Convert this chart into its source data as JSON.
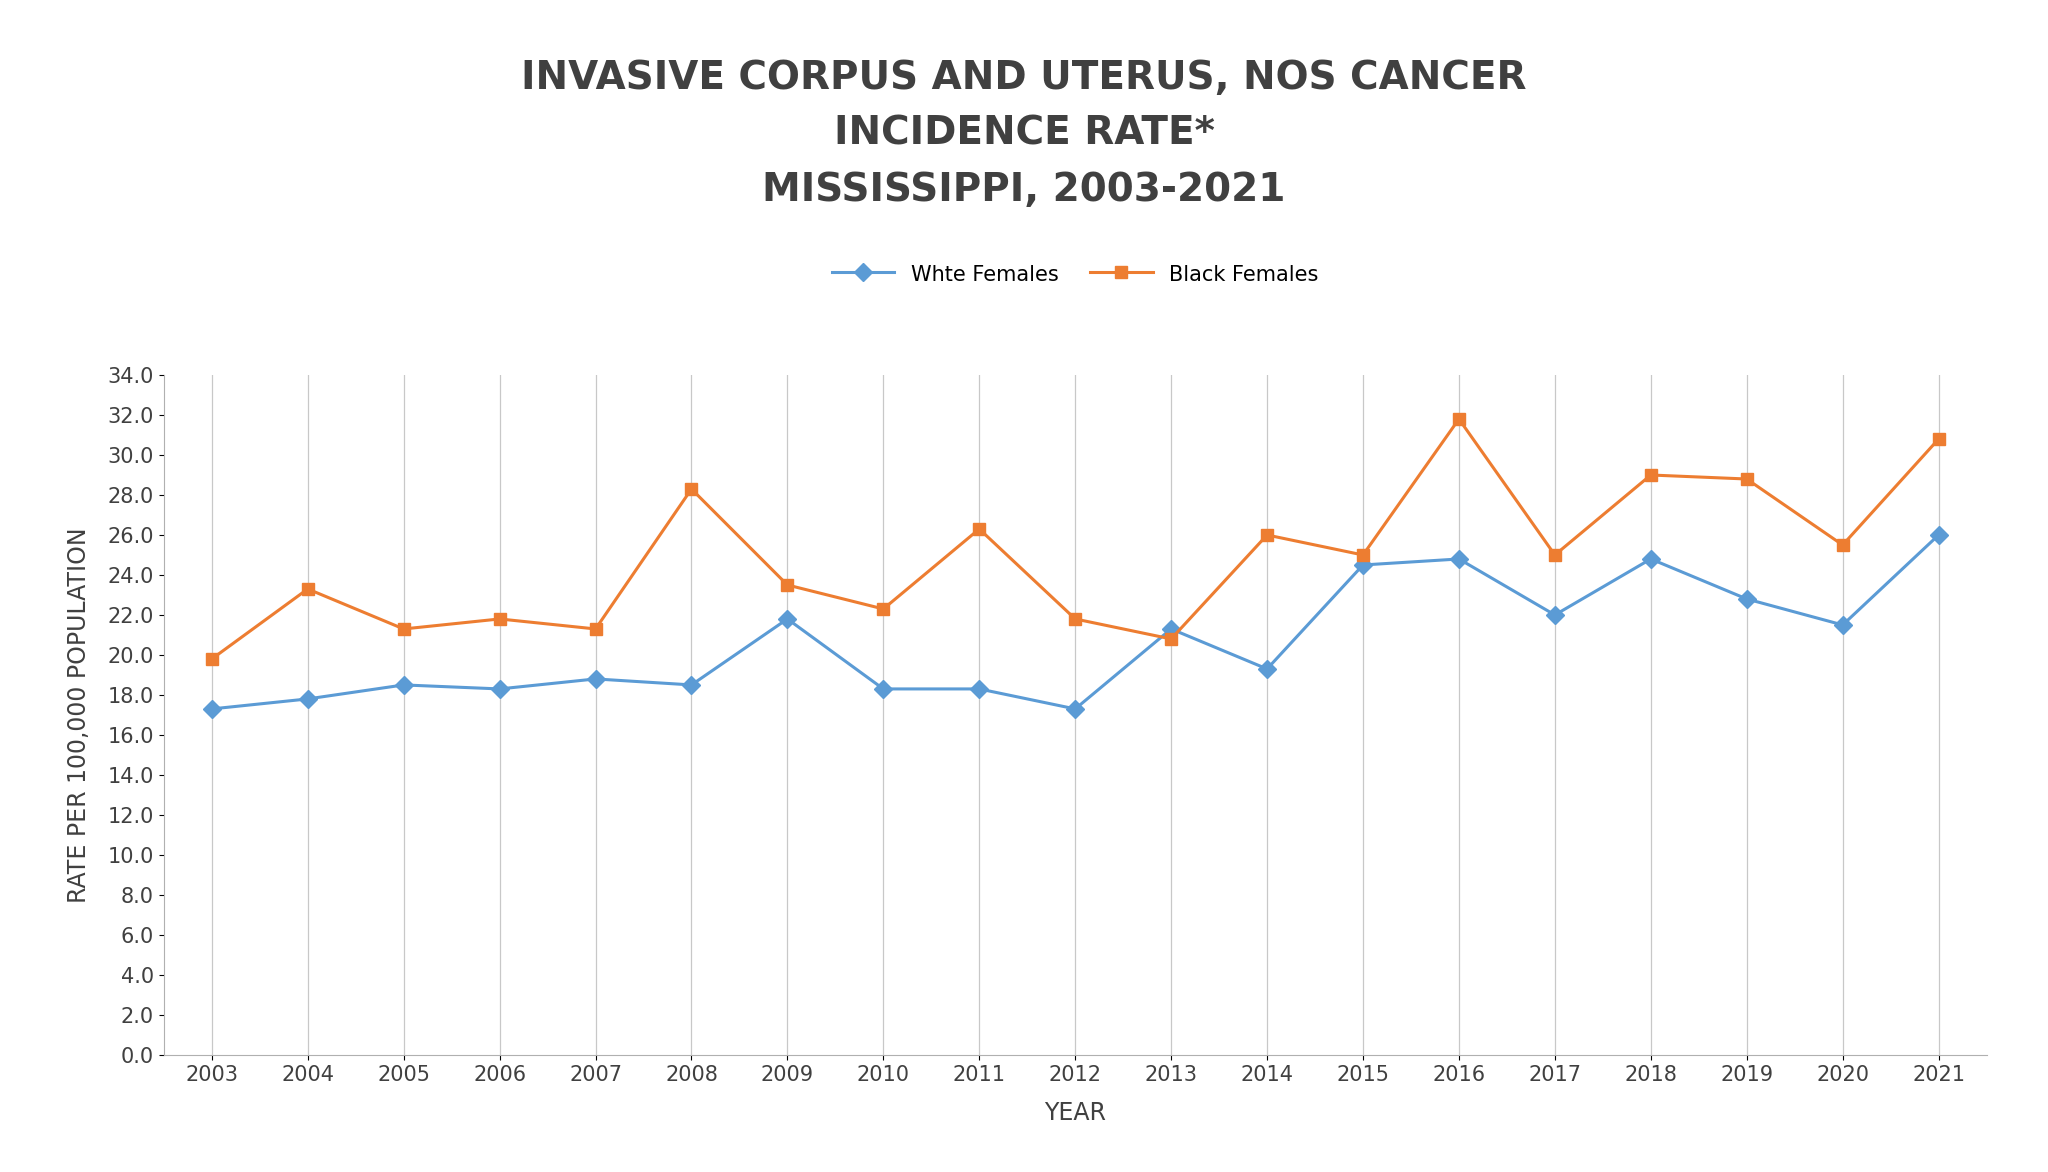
{
  "title": "INVASIVE CORPUS AND UTERUS, NOS CANCER\nINCIDENCE RATE*\nMISSISSIPPI, 2003-2021",
  "xlabel": "YEAR",
  "ylabel": "RATE PER 100,000 POPULATION",
  "years": [
    2003,
    2004,
    2005,
    2006,
    2007,
    2008,
    2009,
    2010,
    2011,
    2012,
    2013,
    2014,
    2015,
    2016,
    2017,
    2018,
    2019,
    2020,
    2021
  ],
  "white_females": [
    17.3,
    17.8,
    18.5,
    18.3,
    18.8,
    18.5,
    21.8,
    18.3,
    18.3,
    17.3,
    21.3,
    19.3,
    24.5,
    24.8,
    22.0,
    24.8,
    22.8,
    21.5,
    26.0
  ],
  "black_females": [
    19.8,
    23.3,
    21.3,
    21.8,
    21.3,
    28.3,
    23.5,
    22.3,
    26.3,
    21.8,
    20.8,
    26.0,
    25.0,
    31.8,
    25.0,
    29.0,
    28.8,
    25.5,
    30.8
  ],
  "white_color": "#5B9BD5",
  "black_color": "#ED7D31",
  "white_label": "Whte Females",
  "black_label": "Black Females",
  "ylim": [
    0,
    34
  ],
  "ytick_max": 34,
  "ytick_step": 2.0,
  "background_color": "#FFFFFF",
  "plot_bg_color": "#FFFFFF",
  "grid_color": "#C8C8C8",
  "title_color": "#404040",
  "title_fontsize": 28,
  "axis_label_fontsize": 17,
  "tick_fontsize": 15,
  "legend_fontsize": 15,
  "linewidth": 2.2,
  "markersize": 9
}
